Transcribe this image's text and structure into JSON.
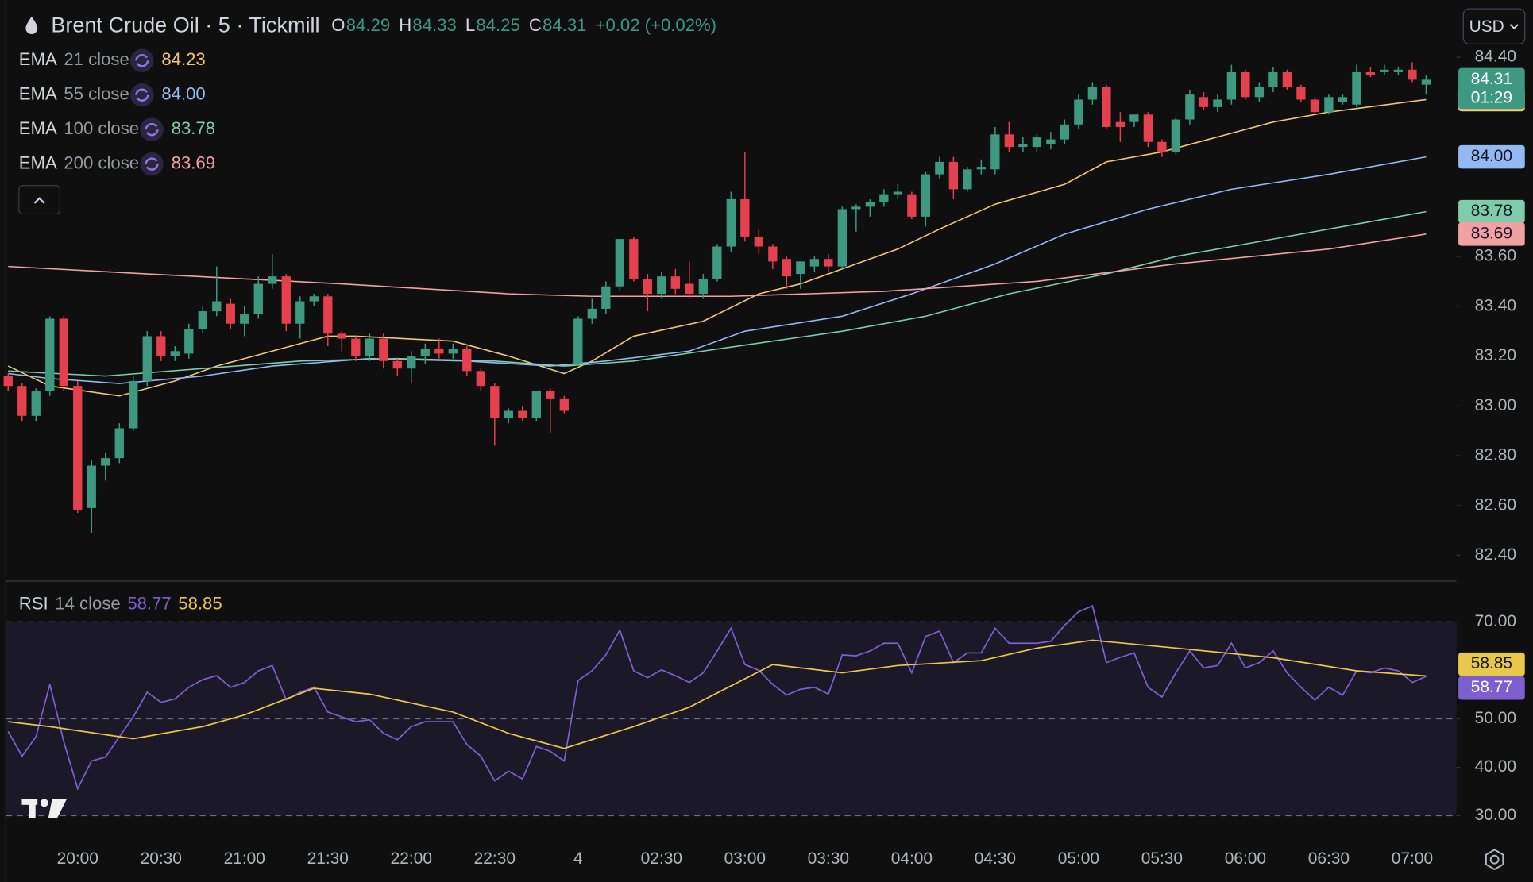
{
  "header": {
    "title": "Brent Crude Oil · 5 · Tickmill",
    "ohlc": [
      {
        "key": "O",
        "value": "84.29"
      },
      {
        "key": "H",
        "value": "84.33"
      },
      {
        "key": "L",
        "value": "84.25"
      },
      {
        "key": "C",
        "value": "84.31"
      }
    ],
    "change": "+0.02 (+0.02%)",
    "currency": "USD"
  },
  "chart_data": [
    {
      "type": "candlestick",
      "up_color": "#3d9a80",
      "down_color": "#e5404e",
      "ylim": [
        82.3,
        84.63
      ],
      "yticks": [
        {
          "value": 84.4,
          "label": "84.40"
        },
        {
          "value": 83.6,
          "label": "83.60"
        },
        {
          "value": 83.4,
          "label": "83.40"
        },
        {
          "value": 83.2,
          "label": "83.20"
        },
        {
          "value": 83.0,
          "label": "83.00"
        },
        {
          "value": 82.8,
          "label": "82.80"
        },
        {
          "value": 82.6,
          "label": "82.60"
        },
        {
          "value": 82.4,
          "label": "82.40"
        }
      ],
      "countdown": "01:29",
      "categories": [
        null,
        null,
        null,
        null,
        null,
        "20:00",
        null,
        null,
        null,
        null,
        null,
        "20:30",
        null,
        null,
        null,
        null,
        null,
        "21:00",
        null,
        null,
        null,
        null,
        null,
        "21:30",
        null,
        null,
        null,
        null,
        null,
        "22:00",
        null,
        null,
        null,
        null,
        null,
        "22:30",
        null,
        null,
        null,
        null,
        null,
        "4",
        null,
        null,
        null,
        null,
        null,
        "02:30",
        null,
        null,
        null,
        null,
        null,
        "03:00",
        null,
        null,
        null,
        null,
        null,
        "03:30",
        null,
        null,
        null,
        null,
        null,
        "04:00",
        null,
        null,
        null,
        null,
        null,
        "04:30",
        null,
        null,
        null,
        null,
        null,
        "05:00",
        null,
        null,
        null,
        null,
        null,
        "05:30",
        null,
        null,
        null,
        null,
        null,
        "06:00",
        null,
        null,
        null,
        null,
        null,
        "06:30",
        null,
        null,
        null,
        null,
        null,
        "07:00",
        null
      ],
      "candles": [
        [
          83.12,
          83.13,
          83.06,
          83.08
        ],
        [
          83.08,
          83.09,
          82.94,
          82.96
        ],
        [
          82.96,
          83.07,
          82.94,
          83.06
        ],
        [
          83.06,
          83.36,
          83.04,
          83.35
        ],
        [
          83.35,
          83.36,
          83.06,
          83.08
        ],
        [
          83.08,
          83.1,
          82.57,
          82.58
        ],
        [
          82.59,
          82.78,
          82.49,
          82.76
        ],
        [
          82.76,
          82.81,
          82.7,
          82.79
        ],
        [
          82.79,
          82.93,
          82.77,
          82.91
        ],
        [
          82.91,
          83.12,
          82.9,
          83.1
        ],
        [
          83.1,
          83.3,
          83.08,
          83.28
        ],
        [
          83.28,
          83.3,
          83.18,
          83.2
        ],
        [
          83.2,
          83.24,
          83.18,
          83.22
        ],
        [
          83.21,
          83.33,
          83.19,
          83.31
        ],
        [
          83.31,
          83.4,
          83.29,
          83.38
        ],
        [
          83.38,
          83.56,
          83.36,
          83.42
        ],
        [
          83.41,
          83.43,
          83.31,
          83.33
        ],
        [
          83.33,
          83.4,
          83.28,
          83.37
        ],
        [
          83.37,
          83.52,
          83.35,
          83.49
        ],
        [
          83.49,
          83.61,
          83.47,
          83.52
        ],
        [
          83.52,
          83.53,
          83.3,
          83.33
        ],
        [
          83.33,
          83.44,
          83.27,
          83.42
        ],
        [
          83.42,
          83.45,
          83.4,
          83.44
        ],
        [
          83.44,
          83.45,
          83.24,
          83.29
        ],
        [
          83.29,
          83.3,
          83.22,
          83.27
        ],
        [
          83.27,
          83.28,
          83.18,
          83.2
        ],
        [
          83.2,
          83.29,
          83.18,
          83.27
        ],
        [
          83.27,
          83.29,
          83.15,
          83.18
        ],
        [
          83.18,
          83.19,
          83.12,
          83.15
        ],
        [
          83.15,
          83.22,
          83.09,
          83.2
        ],
        [
          83.2,
          83.25,
          83.17,
          83.23
        ],
        [
          83.23,
          83.27,
          83.19,
          83.21
        ],
        [
          83.21,
          83.25,
          83.19,
          83.23
        ],
        [
          83.23,
          83.24,
          83.12,
          83.14
        ],
        [
          83.14,
          83.15,
          83.06,
          83.08
        ],
        [
          83.08,
          83.09,
          82.84,
          82.95
        ],
        [
          82.95,
          82.99,
          82.93,
          82.98
        ],
        [
          82.98,
          83.0,
          82.94,
          82.95
        ],
        [
          82.95,
          83.06,
          82.94,
          83.06
        ],
        [
          83.06,
          83.07,
          82.89,
          83.03
        ],
        [
          83.03,
          83.04,
          82.97,
          82.98
        ],
        [
          83.17,
          83.36,
          83.16,
          83.35
        ],
        [
          83.35,
          83.43,
          83.33,
          83.39
        ],
        [
          83.39,
          83.5,
          83.37,
          83.48
        ],
        [
          83.48,
          83.67,
          83.46,
          83.67
        ],
        [
          83.67,
          83.68,
          83.5,
          83.51
        ],
        [
          83.51,
          83.53,
          83.38,
          83.45
        ],
        [
          83.45,
          83.54,
          83.43,
          83.52
        ],
        [
          83.52,
          83.55,
          83.45,
          83.47
        ],
        [
          83.49,
          83.58,
          83.43,
          83.45
        ],
        [
          83.45,
          83.53,
          83.43,
          83.51
        ],
        [
          83.51,
          83.65,
          83.5,
          83.64
        ],
        [
          83.64,
          83.86,
          83.62,
          83.83
        ],
        [
          83.83,
          84.02,
          83.66,
          83.68
        ],
        [
          83.68,
          83.71,
          83.61,
          83.64
        ],
        [
          83.64,
          83.65,
          83.55,
          83.58
        ],
        [
          83.59,
          83.6,
          83.47,
          83.52
        ],
        [
          83.53,
          83.58,
          83.47,
          83.58
        ],
        [
          83.56,
          83.6,
          83.54,
          83.59
        ],
        [
          83.59,
          83.61,
          83.54,
          83.56
        ],
        [
          83.56,
          83.8,
          83.55,
          83.79
        ],
        [
          83.79,
          83.81,
          83.7,
          83.8
        ],
        [
          83.8,
          83.83,
          83.76,
          83.82
        ],
        [
          83.82,
          83.87,
          83.8,
          83.85
        ],
        [
          83.85,
          83.89,
          83.83,
          83.86
        ],
        [
          83.85,
          83.86,
          83.75,
          83.76
        ],
        [
          83.76,
          83.94,
          83.72,
          83.93
        ],
        [
          83.93,
          84.0,
          83.91,
          83.98
        ],
        [
          83.98,
          84.0,
          83.83,
          83.87
        ],
        [
          83.87,
          83.96,
          83.86,
          83.95
        ],
        [
          83.95,
          83.99,
          83.93,
          83.96
        ],
        [
          83.95,
          84.12,
          83.93,
          84.09
        ],
        [
          84.09,
          84.14,
          84.02,
          84.04
        ],
        [
          84.04,
          84.08,
          84.02,
          84.05
        ],
        [
          84.04,
          84.09,
          84.02,
          84.08
        ],
        [
          84.05,
          84.1,
          84.03,
          84.07
        ],
        [
          84.07,
          84.15,
          84.05,
          84.13
        ],
        [
          84.13,
          84.25,
          84.11,
          84.23
        ],
        [
          84.23,
          84.3,
          84.21,
          84.28
        ],
        [
          84.28,
          84.29,
          84.11,
          84.12
        ],
        [
          84.14,
          84.18,
          84.06,
          84.12
        ],
        [
          84.14,
          84.17,
          84.12,
          84.17
        ],
        [
          84.17,
          84.18,
          84.04,
          84.06
        ],
        [
          84.06,
          84.07,
          84.0,
          84.02
        ],
        [
          84.02,
          84.16,
          84.01,
          84.15
        ],
        [
          84.15,
          84.27,
          84.13,
          84.25
        ],
        [
          84.24,
          84.26,
          84.19,
          84.2
        ],
        [
          84.2,
          84.25,
          84.18,
          84.23
        ],
        [
          84.23,
          84.37,
          84.21,
          84.34
        ],
        [
          84.34,
          84.35,
          84.23,
          84.24
        ],
        [
          84.24,
          84.3,
          84.22,
          84.28
        ],
        [
          84.28,
          84.36,
          84.26,
          84.34
        ],
        [
          84.34,
          84.35,
          84.27,
          84.28
        ],
        [
          84.28,
          84.29,
          84.22,
          84.23
        ],
        [
          84.23,
          84.24,
          84.17,
          84.18
        ],
        [
          84.18,
          84.25,
          84.17,
          84.24
        ],
        [
          84.22,
          84.25,
          84.21,
          84.24
        ],
        [
          84.21,
          84.37,
          84.2,
          84.34
        ],
        [
          84.34,
          84.36,
          84.32,
          84.33
        ],
        [
          84.34,
          84.37,
          84.33,
          84.35
        ],
        [
          84.34,
          84.36,
          84.33,
          84.35
        ],
        [
          84.35,
          84.38,
          84.3,
          84.31
        ],
        [
          84.29,
          84.33,
          84.25,
          84.31
        ]
      ],
      "overlays": [
        {
          "name": "EMA",
          "params": "21 close",
          "color": "#f3c47c",
          "value_label": "84.23",
          "x": [
            0,
            3,
            8,
            12,
            15,
            19,
            23,
            25,
            32,
            36,
            40,
            42,
            45,
            50,
            54,
            57,
            60,
            64,
            67,
            71,
            76,
            79,
            83,
            87,
            91,
            95,
            102
          ],
          "values": [
            83.16,
            83.08,
            83.04,
            83.1,
            83.16,
            83.22,
            83.28,
            83.28,
            83.26,
            83.2,
            83.13,
            83.18,
            83.28,
            83.34,
            83.45,
            83.49,
            83.55,
            83.63,
            83.71,
            83.81,
            83.89,
            83.98,
            84.02,
            84.08,
            84.14,
            84.18,
            84.23
          ]
        },
        {
          "name": "EMA",
          "params": "55 close",
          "color": "#93b8f2",
          "value_label": "84.00",
          "x": [
            0,
            3,
            8,
            14,
            19,
            26,
            33,
            39,
            43,
            49,
            53,
            60,
            65,
            71,
            76,
            82,
            88,
            95,
            102
          ],
          "values": [
            83.13,
            83.11,
            83.09,
            83.12,
            83.16,
            83.19,
            83.18,
            83.16,
            83.18,
            83.22,
            83.3,
            83.36,
            83.45,
            83.57,
            83.69,
            83.79,
            83.87,
            83.93,
            84.0
          ]
        },
        {
          "name": "EMA",
          "params": "100 close",
          "color": "#7fcbac",
          "value_label": "83.78",
          "x": [
            0,
            7,
            14,
            21,
            28,
            35,
            40,
            45,
            50,
            55,
            60,
            66,
            72,
            79,
            84,
            91,
            97,
            102
          ],
          "values": [
            83.14,
            83.12,
            83.15,
            83.18,
            83.19,
            83.18,
            83.16,
            83.18,
            83.22,
            83.26,
            83.3,
            83.36,
            83.45,
            83.53,
            83.6,
            83.67,
            83.73,
            83.78
          ]
        },
        {
          "name": "EMA",
          "params": "200 close",
          "color": "#f1a0a3",
          "value_label": "83.69",
          "x": [
            0,
            10,
            24,
            36,
            42,
            52,
            63,
            74,
            84,
            95,
            102
          ],
          "values": [
            83.56,
            83.53,
            83.49,
            83.45,
            83.44,
            83.44,
            83.46,
            83.5,
            83.57,
            83.63,
            83.69
          ]
        }
      ]
    },
    {
      "type": "line",
      "name": "RSI",
      "params": "14 close",
      "ylim": [
        25,
        78
      ],
      "yticks": [
        {
          "value": 70,
          "label": "70.00"
        },
        {
          "value": 50,
          "label": "50.00"
        },
        {
          "value": 40,
          "label": "40.00"
        },
        {
          "value": 30,
          "label": "30.00"
        }
      ],
      "levels": [
        70,
        50,
        30
      ],
      "series": [
        {
          "color": "#7e5fd0",
          "value_label": "58.77",
          "values": [
            47.4,
            42.3,
            46.3,
            57.1,
            45.3,
            35.6,
            41.3,
            42.1,
            46.3,
            50.4,
            55.5,
            53.4,
            54.1,
            56.5,
            58.1,
            58.9,
            56.5,
            57.5,
            59.9,
            61.0,
            53.9,
            55.5,
            56.5,
            51.4,
            50.4,
            49.4,
            49.8,
            47.0,
            45.7,
            48.4,
            49.4,
            49.4,
            49.4,
            44.7,
            42.3,
            37.2,
            39.2,
            37.6,
            44.3,
            43.3,
            41.3,
            57.9,
            59.9,
            63.2,
            68.3,
            59.9,
            58.5,
            60.1,
            58.9,
            57.5,
            59.5,
            64.0,
            68.7,
            61.2,
            60.0,
            57.1,
            54.9,
            56.1,
            56.5,
            55.1,
            63.2,
            63.0,
            64.0,
            65.6,
            65.6,
            59.5,
            67.0,
            68.1,
            61.6,
            63.6,
            63.6,
            68.7,
            65.6,
            65.6,
            65.6,
            66.0,
            69.3,
            72.1,
            73.3,
            61.6,
            62.7,
            63.6,
            56.5,
            54.5,
            59.5,
            64.0,
            60.5,
            61.0,
            65.6,
            60.5,
            61.6,
            64.0,
            59.5,
            56.5,
            53.9,
            56.5,
            54.9,
            59.9,
            59.5,
            60.5,
            59.9,
            57.5,
            58.77
          ]
        },
        {
          "color": "#e9c74a",
          "value_label": "58.85",
          "x": [
            0,
            3,
            9,
            14,
            17,
            22,
            26,
            32,
            36,
            40,
            45,
            49,
            55,
            60,
            64,
            70,
            74,
            78,
            84,
            91,
            97,
            102
          ],
          "values": [
            49.4,
            48.4,
            45.9,
            48.4,
            50.8,
            56.3,
            55.1,
            51.4,
            47.0,
            43.9,
            48.4,
            52.4,
            61.2,
            59.5,
            61.0,
            62.0,
            64.6,
            66.2,
            64.6,
            62.6,
            59.9,
            58.85
          ]
        }
      ]
    }
  ]
}
